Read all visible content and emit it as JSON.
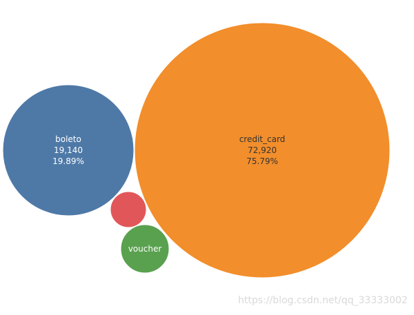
{
  "chart_data": {
    "type": "bubble",
    "bubbles": [
      {
        "category": "credit_card",
        "value": "72,920",
        "percent": "75.79%",
        "color": "#f28e2b",
        "label_color": "#333333"
      },
      {
        "category": "boleto",
        "value": "19,140",
        "percent": "19.89%",
        "color": "#4e79a7",
        "label_color": "#ffffff"
      },
      {
        "category": "",
        "value": "",
        "percent": "",
        "color": "#e15759",
        "label_color": "#ffffff"
      },
      {
        "category": "voucher",
        "value": "",
        "percent": "",
        "color": "#59a14f",
        "label_color": "#ffffff"
      }
    ]
  },
  "watermark": "https://blog.csdn.net/qq_33333002"
}
